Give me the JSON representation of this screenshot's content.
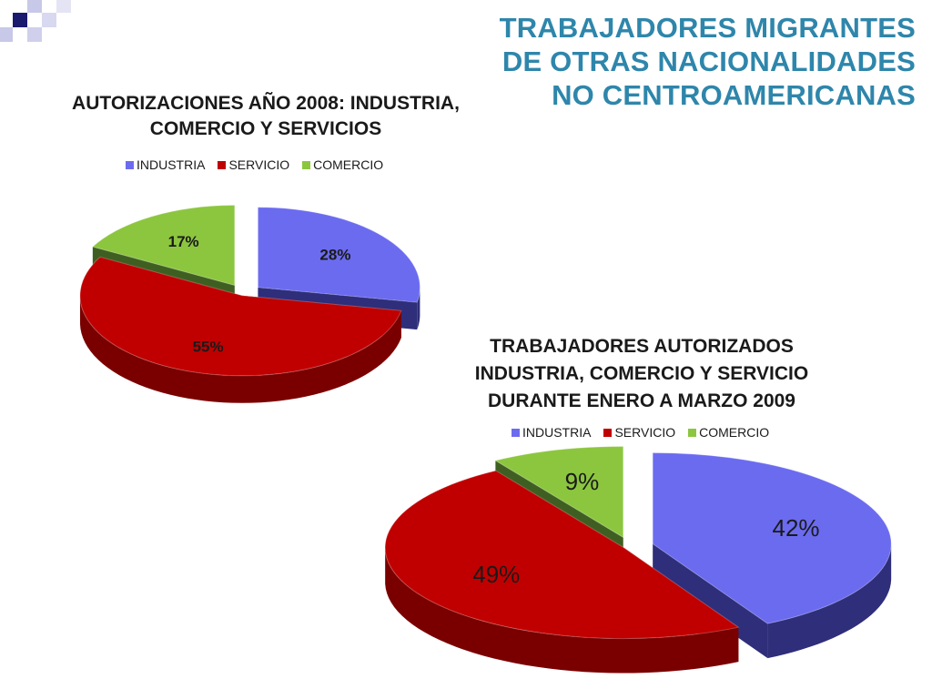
{
  "slide": {
    "title_lines": [
      "TRABAJADORES MIGRANTES",
      "DE OTRAS NACIONALIDADES",
      "NO CENTROAMERICANAS"
    ],
    "title_color": "#2e86ab"
  },
  "chart_data": [
    {
      "type": "pie",
      "title_lines": [
        "AUTORIZACIONES AÑO 2008: INDUSTRIA,",
        "COMERCIO Y SERVICIOS"
      ],
      "legend": [
        "INDUSTRIA",
        "SERVICIO",
        "COMERCIO"
      ],
      "legend_position": "top",
      "slices": [
        {
          "name": "INDUSTRIA",
          "value": 28,
          "label": "28%",
          "color": "#6b6bf0",
          "dark": "#2e2e7a"
        },
        {
          "name": "SERVICIO",
          "value": 55,
          "label": "55%",
          "color": "#c00000",
          "dark": "#7a0000"
        },
        {
          "name": "COMERCIO",
          "value": 17,
          "label": "17%",
          "color": "#8cc63f",
          "dark": "#3f5f22"
        }
      ]
    },
    {
      "type": "pie",
      "title_lines": [
        "TRABAJADORES AUTORIZADOS",
        "INDUSTRIA, COMERCIO Y SERVICIO",
        "DURANTE ENERO A MARZO 2009"
      ],
      "legend": [
        "INDUSTRIA",
        "SERVICIO",
        "COMERCIO"
      ],
      "legend_position": "top",
      "slices": [
        {
          "name": "INDUSTRIA",
          "value": 42,
          "label": "42%",
          "color": "#6b6bf0",
          "dark": "#2e2e7a"
        },
        {
          "name": "SERVICIO",
          "value": 49,
          "label": "49%",
          "color": "#c00000",
          "dark": "#7a0000"
        },
        {
          "name": "COMERCIO",
          "value": 9,
          "label": "9%",
          "color": "#8cc63f",
          "dark": "#3f5f22"
        }
      ]
    }
  ]
}
